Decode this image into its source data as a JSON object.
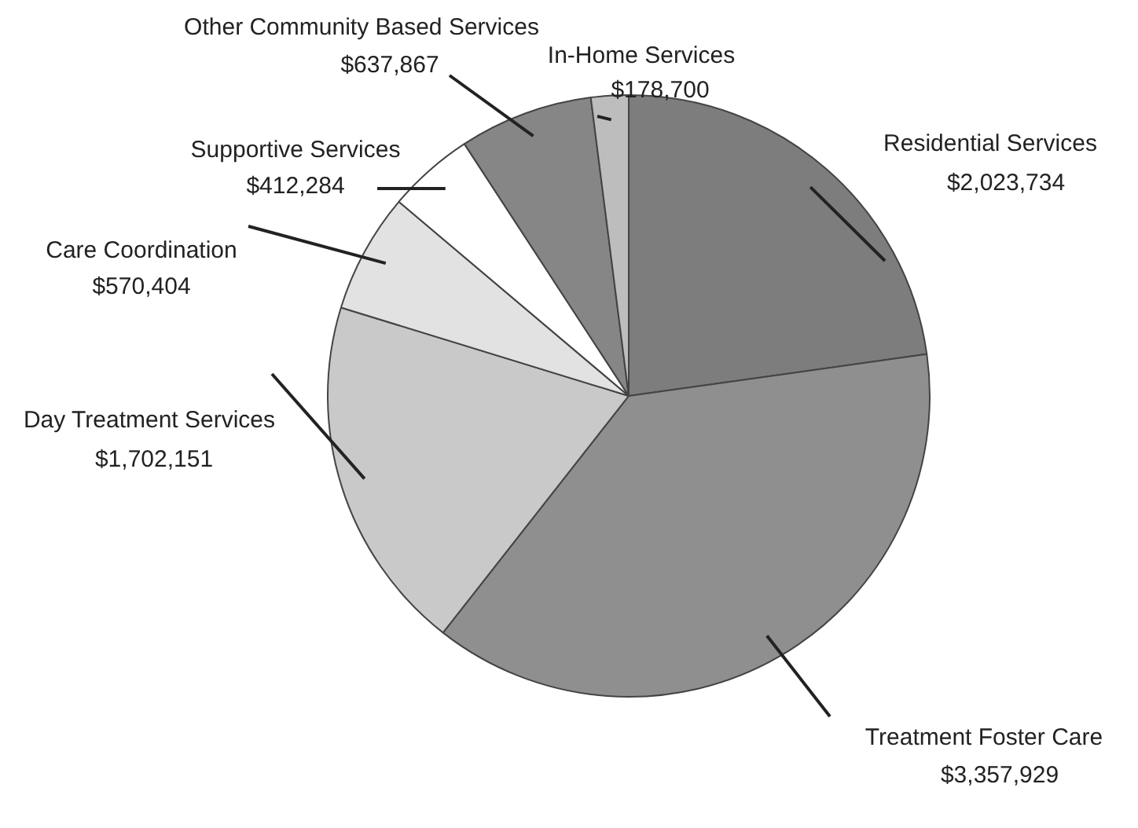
{
  "chart_data": {
    "type": "pie",
    "categories": [
      "Residential Services",
      "Treatment Foster Care",
      "Day Treatment Services",
      "Care Coordination",
      "Supportive Services",
      "Other Community Based Services",
      "In-Home Services"
    ],
    "values": [
      2023734,
      3357929,
      1702151,
      570404,
      412284,
      637867,
      178700
    ],
    "value_labels": [
      "$2,023,734",
      "$3,357,929",
      "$1,702,151",
      "$570,404",
      "$412,284",
      "$637,867",
      "$178,700"
    ],
    "colors": [
      "#7d7d7d",
      "#8f8f8f",
      "#c9c9c9",
      "#e2e2e2",
      "#ffffff",
      "#868686",
      "#bdbdbd"
    ],
    "legend": false
  }
}
